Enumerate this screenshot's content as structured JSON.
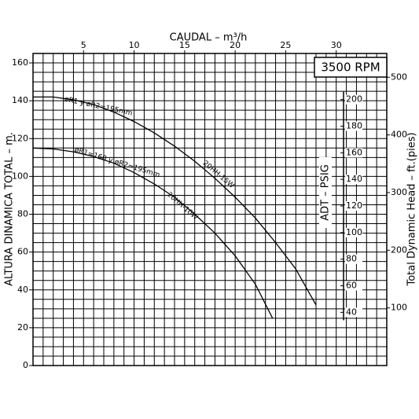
{
  "chart_data": {
    "type": "line",
    "title": "3500 RPM",
    "x_label": "CAUDAL  – m³/h",
    "y_label": "ALTURA DINAMICA TOTAL  –  m.",
    "y2_label": "ADT – PSIG",
    "y3_label": "Total Dynamic Head – ft.(pies)",
    "xlim": [
      0,
      35
    ],
    "xticks": [
      5,
      10,
      15,
      20,
      25,
      30
    ],
    "ylim": [
      0,
      165
    ],
    "yticks": [
      0,
      20,
      40,
      60,
      80,
      100,
      120,
      140,
      160
    ],
    "y2lim": [
      0,
      234.7
    ],
    "y2ticks": [
      40,
      60,
      80,
      100,
      120,
      140,
      160,
      180,
      200
    ],
    "y3lim": [
      0,
      541.3
    ],
    "y3ticks": [
      100,
      200,
      300,
      400,
      500
    ],
    "grid": true,
    "series": [
      {
        "name": "20HH-15W",
        "annotation": "øR1 y øR2=195mm",
        "color": "#000000",
        "x": [
          0,
          2,
          4,
          6,
          8,
          10,
          12,
          14,
          16,
          18,
          20,
          22,
          24,
          26,
          28
        ],
        "values": [
          142,
          142,
          140.5,
          138,
          134,
          129,
          123,
          116,
          108,
          99,
          89,
          78,
          65,
          51,
          32
        ]
      },
      {
        "name": "20HH-10W",
        "annotation": "øR1=160 y øR2=195mm",
        "color": "#000000",
        "x": [
          0,
          2,
          4,
          6,
          8,
          10,
          12,
          14,
          16,
          18,
          20,
          22,
          23.7
        ],
        "values": [
          115,
          114.5,
          113,
          110.5,
          107,
          102,
          96,
          89,
          80,
          70,
          58,
          43,
          25
        ]
      }
    ]
  }
}
